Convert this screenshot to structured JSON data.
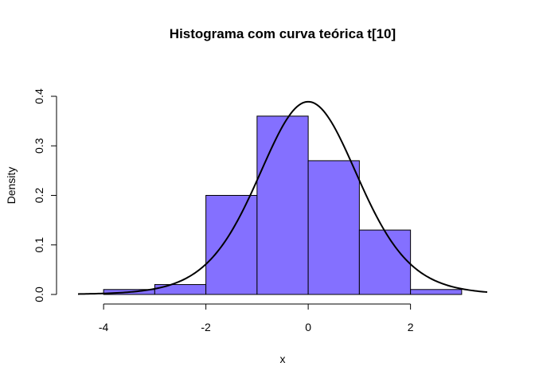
{
  "chart_data": {
    "type": "histogram",
    "title": "Histograma com curva teórica t[10]",
    "xlabel": "x",
    "ylabel": "Density",
    "bins": [
      {
        "x0": -4,
        "x1": -3,
        "density": 0.01
      },
      {
        "x0": -3,
        "x1": -2,
        "density": 0.02
      },
      {
        "x0": -2,
        "x1": -1,
        "density": 0.2
      },
      {
        "x0": -1,
        "x1": 0,
        "density": 0.36
      },
      {
        "x0": 0,
        "x1": 1,
        "density": 0.27
      },
      {
        "x0": 1,
        "x1": 2,
        "density": 0.13
      },
      {
        "x0": 2,
        "x1": 3,
        "density": 0.01
      }
    ],
    "curve": {
      "distribution": "t",
      "df": 10,
      "x_range": [
        -4.5,
        3.5
      ]
    },
    "x_ticks": [
      -4,
      -2,
      0,
      2
    ],
    "x_tick_labels": [
      "-4",
      "-2",
      "0",
      "2"
    ],
    "y_ticks": [
      0.0,
      0.1,
      0.2,
      0.3,
      0.4
    ],
    "y_tick_labels": [
      "0.0",
      "0.1",
      "0.2",
      "0.3",
      "0.4"
    ],
    "xlim": [
      -4.5,
      3.5
    ],
    "ylim": [
      0,
      0.4
    ],
    "grid": false,
    "colors": {
      "bar_fill": "#8470ff",
      "bar_stroke": "#000000",
      "curve": "#000000"
    }
  }
}
